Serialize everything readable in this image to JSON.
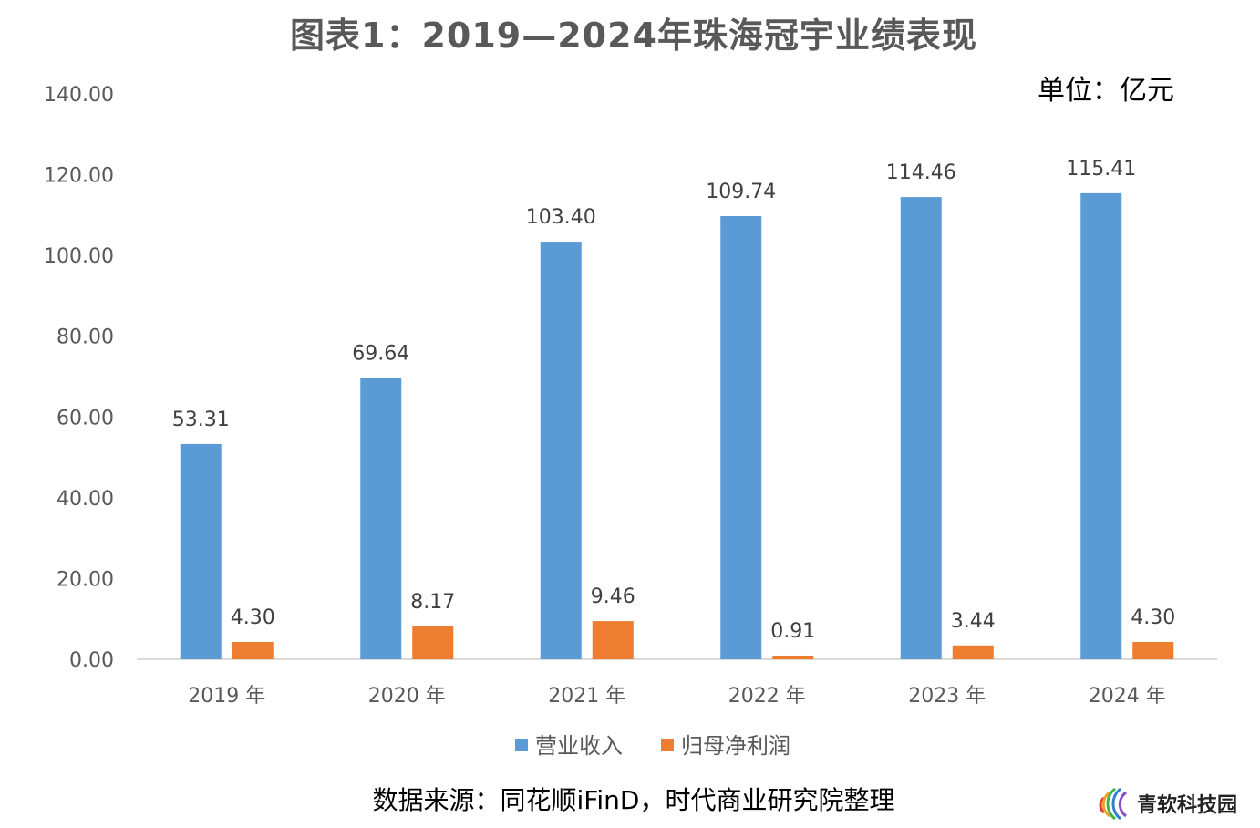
{
  "title": "图表1：2019—2024年珠海冠宇业绩表现",
  "unit": "单位：亿元",
  "source": "数据来源：同花顺iFinD，时代商业研究院整理",
  "brand": "青软科技园",
  "colors": {
    "revenue": "#5B9BD5",
    "profit": "#ED7D31",
    "axis": "#D9D9D9"
  },
  "chart_data": {
    "type": "bar",
    "categories": [
      "2019 年",
      "2020 年",
      "2021 年",
      "2022 年",
      "2023 年",
      "2024 年"
    ],
    "series": [
      {
        "name": "营业收入",
        "values": [
          53.31,
          69.64,
          103.4,
          109.74,
          114.46,
          115.41
        ],
        "labels": [
          "53.31",
          "69.64",
          "103.40",
          "109.74",
          "114.46",
          "115.41"
        ]
      },
      {
        "name": "归母净利润",
        "values": [
          4.3,
          8.17,
          9.46,
          0.91,
          3.44,
          4.3
        ],
        "labels": [
          "4.30",
          "8.17",
          "9.46",
          "0.91",
          "3.44",
          "4.30"
        ]
      }
    ],
    "ylim": [
      0,
      140
    ],
    "yticks": [
      "0.00",
      "20.00",
      "40.00",
      "60.00",
      "80.00",
      "100.00",
      "120.00",
      "140.00"
    ],
    "grid": false,
    "legend": "bottom"
  }
}
